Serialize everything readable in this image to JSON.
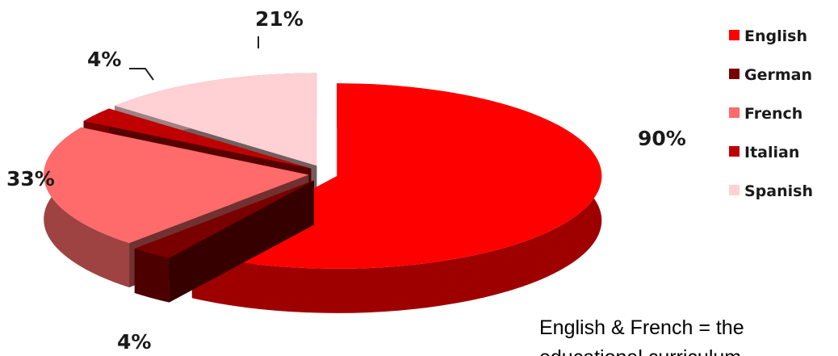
{
  "chart_data": {
    "type": "pie",
    "title": "",
    "categories": [
      "English",
      "German",
      "French",
      "Italian",
      "Spanish"
    ],
    "values": [
      90,
      4,
      33,
      4,
      21
    ],
    "value_labels": [
      "90%",
      "4%",
      "33%",
      "4%",
      "21%"
    ],
    "colors": {
      "English": "#ff0000",
      "German": "#7a0000",
      "French": "#ff6a6a",
      "Italian": "#c00000",
      "Spanish": "#ffd0d4"
    },
    "exploded": true,
    "three_d": true,
    "legend_position": "right",
    "legend": [
      "English",
      "German",
      "French",
      "Italian",
      "Spanish"
    ]
  },
  "caption": {
    "line1": "English & French = the",
    "line2": "educational curriculum"
  }
}
